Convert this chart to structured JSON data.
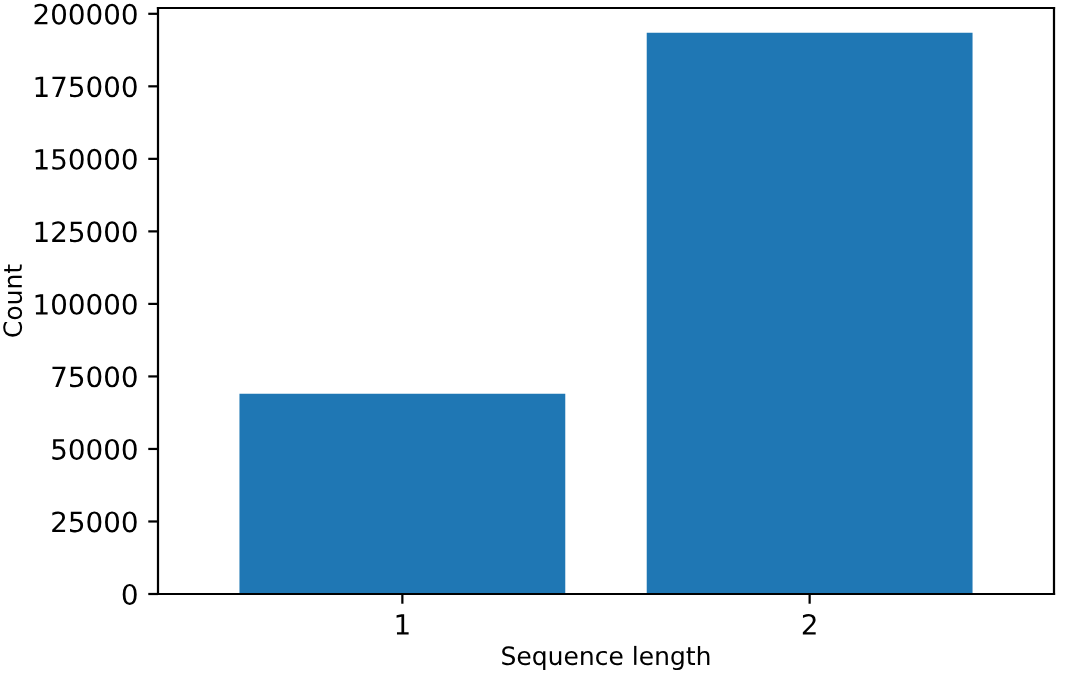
{
  "chart_data": {
    "type": "bar",
    "xlabel": "Sequence length",
    "ylabel": "Count",
    "categories": [
      "1",
      "2"
    ],
    "values": [
      69000,
      193500
    ],
    "color": "#1f77b4",
    "ylim": [
      0,
      202000
    ],
    "yticks": [
      0,
      25000,
      50000,
      75000,
      100000,
      125000,
      150000,
      175000,
      200000
    ],
    "grid": false
  }
}
